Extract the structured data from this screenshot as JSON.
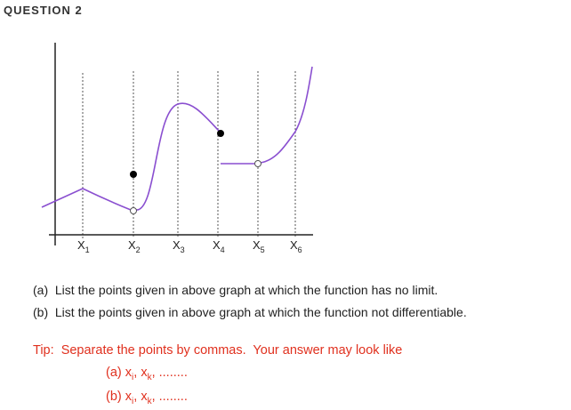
{
  "header": {
    "title": "QUESTION 2"
  },
  "graph": {
    "x_labels": [
      {
        "base": "X",
        "sub": "1"
      },
      {
        "base": "X",
        "sub": "2"
      },
      {
        "base": "X",
        "sub": "3"
      },
      {
        "base": "X",
        "sub": "4"
      },
      {
        "base": "X",
        "sub": "5"
      },
      {
        "base": "X",
        "sub": "6"
      }
    ]
  },
  "questions": [
    "(a)  List the points given in above graph at which the function has no limit.",
    "(b)  List the points given in above graph at which the function not differentiable."
  ],
  "tip": {
    "text": "Tip:  Separate the points by commas.  Your answer may look like",
    "examples": [
      {
        "label": "(a)",
        "terms": [
          {
            "base": "x",
            "sub": "i"
          },
          {
            "base": "x",
            "sub": "k"
          }
        ],
        "separator": ",",
        "ellipsis": "........"
      },
      {
        "label": "(b)",
        "terms": [
          {
            "base": "x",
            "sub": "i"
          },
          {
            "base": "x",
            "sub": "k"
          }
        ],
        "separator": ",",
        "ellipsis": "........"
      }
    ]
  }
}
